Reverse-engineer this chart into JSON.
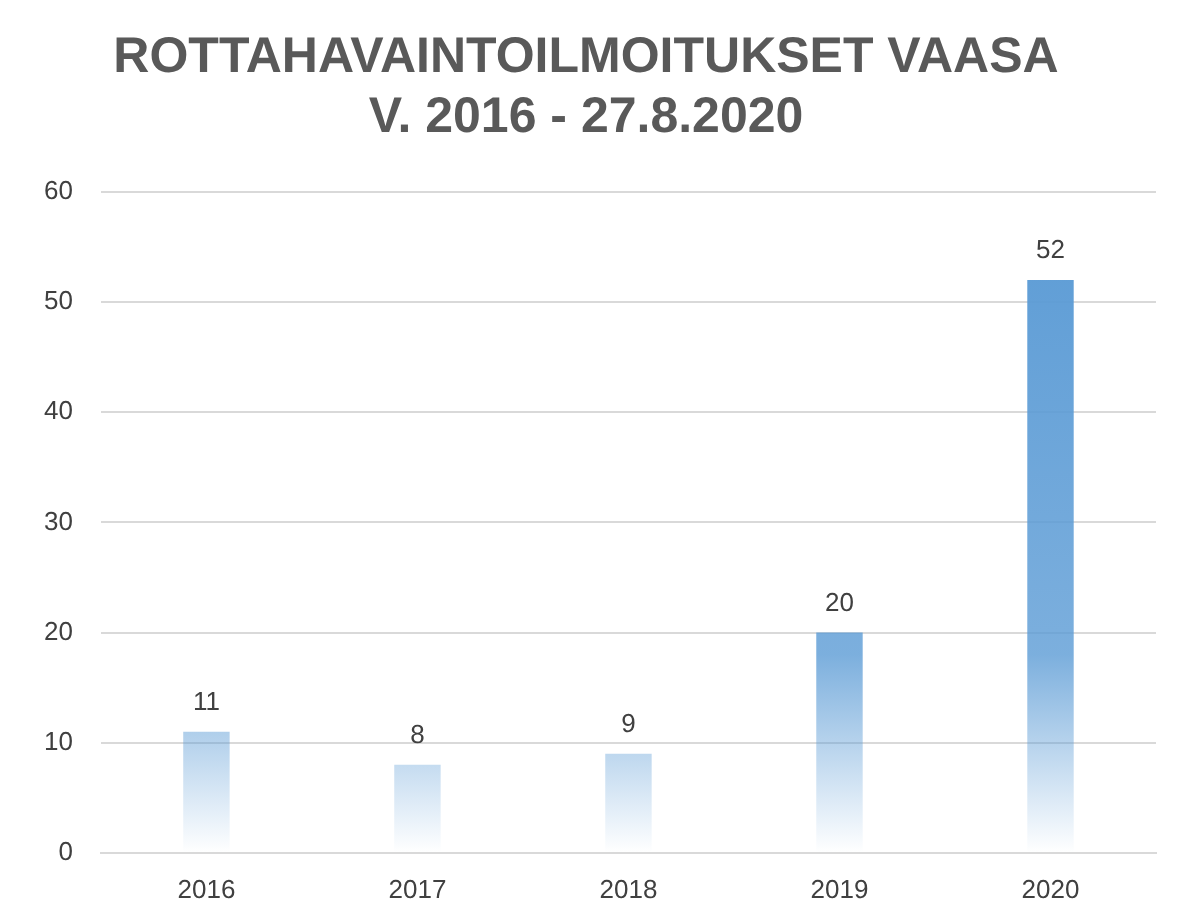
{
  "chart_data": {
    "type": "bar",
    "title": "ROTTAHAVAINTOILMOITUKSET VAASA\nV. 2016 - 27.8.2020",
    "categories": [
      "2016",
      "2017",
      "2018",
      "2019",
      "2020"
    ],
    "values": [
      11,
      8,
      9,
      20,
      52
    ],
    "color": "#5b9bd5",
    "ylim": [
      0,
      60
    ],
    "yticks": [
      0,
      10,
      20,
      30,
      40,
      50,
      60
    ],
    "grid": "y",
    "data_labels": true
  }
}
